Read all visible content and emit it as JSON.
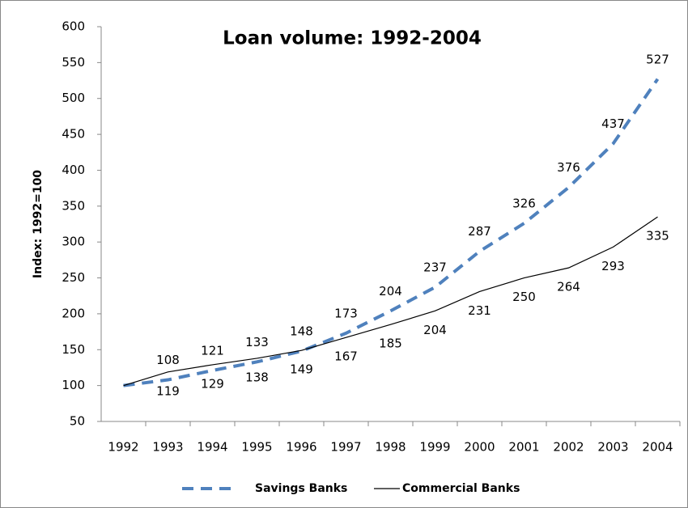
{
  "chart_data": {
    "type": "line",
    "title": "Loan volume: 1992-2004",
    "y_label": "Index: 1992=100",
    "categories": [
      "1992",
      "1993",
      "1994",
      "1995",
      "1996",
      "1997",
      "1998",
      "1999",
      "2000",
      "2001",
      "2002",
      "2003",
      "2004"
    ],
    "series": [
      {
        "name": "Savings Banks",
        "color": "#4f81bd",
        "dashed": true,
        "values": [
          100,
          108,
          121,
          133,
          148,
          173,
          204,
          237,
          287,
          326,
          376,
          437,
          527
        ],
        "value_labels": [
          null,
          "108",
          "121",
          "133",
          "148",
          "173",
          "204",
          "237",
          "287",
          "326",
          "376",
          "437",
          "527"
        ]
      },
      {
        "name": "Commercial Banks",
        "color": "#000000",
        "dashed": false,
        "values": [
          100,
          119,
          129,
          138,
          149,
          167,
          185,
          204,
          231,
          250,
          264,
          293,
          335
        ],
        "value_labels": [
          null,
          "119",
          "129",
          "138",
          "149",
          "167",
          "185",
          "204",
          "231",
          "250",
          "264",
          "293",
          "335"
        ]
      }
    ],
    "ylim": [
      50,
      600
    ],
    "yticks": [
      50,
      100,
      150,
      200,
      250,
      300,
      350,
      400,
      450,
      500,
      550,
      600
    ],
    "grid": false,
    "legend": "bottom"
  }
}
